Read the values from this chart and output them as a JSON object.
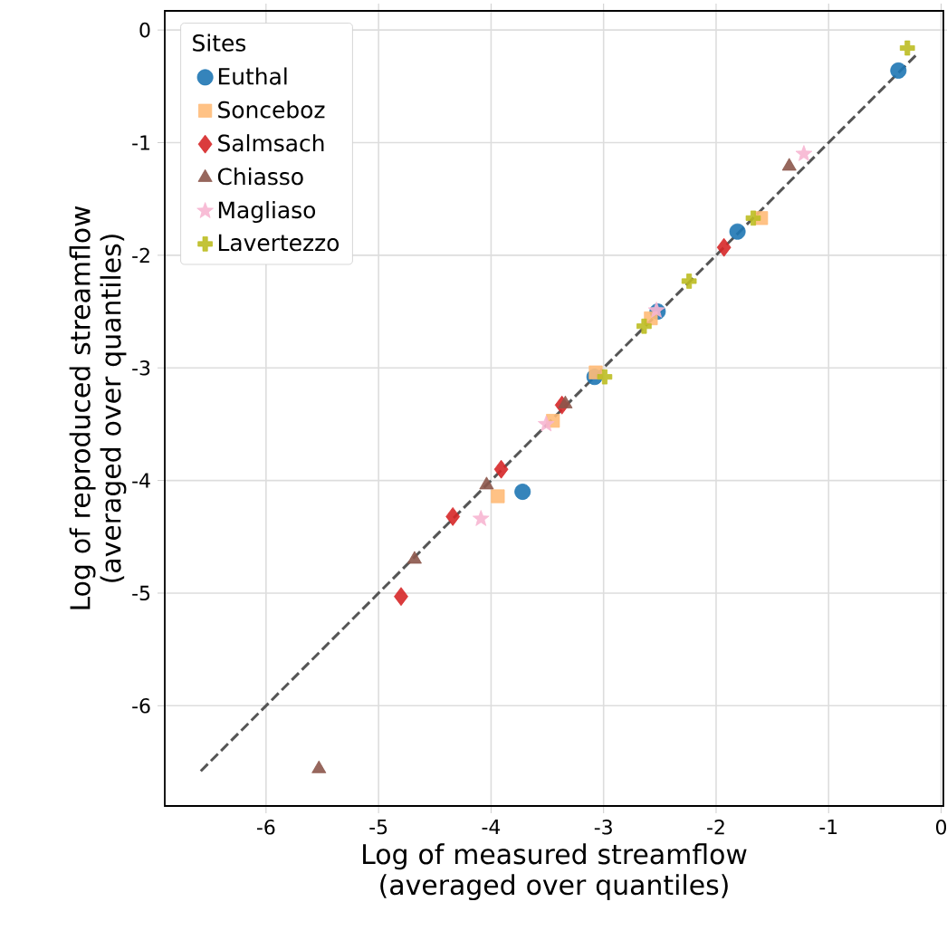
{
  "chart_data": {
    "type": "scatter",
    "xlabel": "Log of measured streamflow (averaged over quantiles)",
    "ylabel": "Log of reproduced streamflow (averaged over quantiles)",
    "legend_title": "Sites",
    "legend": "top left",
    "grid": true,
    "xlim": [
      -6.9,
      0.02
    ],
    "ylim": [
      -6.89,
      0.17
    ],
    "xticks": [
      -6,
      -5,
      -4,
      -3,
      -2,
      -1,
      0
    ],
    "yticks": [
      -6,
      -5,
      -4,
      -3,
      -2,
      -1,
      0
    ],
    "series": [
      {
        "name": "Euthal",
        "color": "#1f77b4",
        "marker": "circle",
        "x": [
          -0.38,
          -1.81,
          -2.52,
          -3.08,
          -3.72
        ],
        "values": [
          -0.36,
          -1.79,
          -2.5,
          -3.08,
          -4.1
        ]
      },
      {
        "name": "Sonceboz",
        "color": "#ffbb78",
        "marker": "square",
        "x": [
          -1.6,
          -2.58,
          -3.07,
          -3.45,
          -3.94
        ],
        "values": [
          -1.67,
          -2.56,
          -3.04,
          -3.47,
          -4.14
        ]
      },
      {
        "name": "Salmsach",
        "color": "#d62728",
        "marker": "diamond",
        "x": [
          -1.93,
          -3.37,
          -3.91,
          -4.34,
          -4.8
        ],
        "values": [
          -1.93,
          -3.33,
          -3.9,
          -4.32,
          -5.03
        ]
      },
      {
        "name": "Chiasso",
        "color": "#8c564b",
        "marker": "triangle",
        "x": [
          -1.35,
          -3.34,
          -4.04,
          -4.68,
          -5.53
        ],
        "values": [
          -1.21,
          -3.32,
          -4.04,
          -4.7,
          -6.56
        ]
      },
      {
        "name": "Magliaso",
        "color": "#f7b6d2",
        "marker": "star",
        "x": [
          -1.22,
          -2.53,
          -3.51,
          -4.09
        ],
        "values": [
          -1.1,
          -2.49,
          -3.5,
          -4.34
        ]
      },
      {
        "name": "Lavertezzo",
        "color": "#bcbd22",
        "marker": "cross",
        "x": [
          -0.3,
          -1.67,
          -2.24,
          -2.64,
          -2.99
        ],
        "values": [
          -0.16,
          -1.67,
          -2.23,
          -2.63,
          -3.08
        ]
      },
      {
        "type": "line",
        "color": "#555555",
        "line_style": "dashed",
        "marker": "none",
        "x": [
          -6.58,
          -0.2
        ],
        "values": [
          -6.58,
          -0.2
        ]
      }
    ]
  }
}
